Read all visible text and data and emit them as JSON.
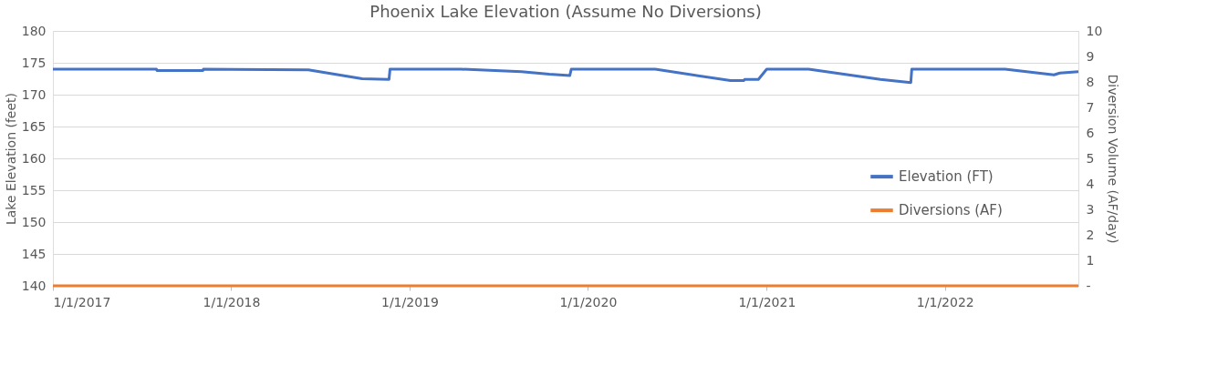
{
  "chart_data": {
    "type": "line",
    "title": "Phoenix Lake Elevation (Assume No Diversions)",
    "ylabel": "Lake Elevation (feet)",
    "y2label": "Diversion Volume (AF/day)",
    "xlim": [
      "2017-01-01",
      "2022-10-01"
    ],
    "xticks": [
      {
        "value": "2017-01-01",
        "label": "1/1/2017"
      },
      {
        "value": "2018-01-01",
        "label": "1/1/2018"
      },
      {
        "value": "2019-01-01",
        "label": "1/1/2019"
      },
      {
        "value": "2020-01-01",
        "label": "1/1/2020"
      },
      {
        "value": "2021-01-01",
        "label": "1/1/2021"
      },
      {
        "value": "2022-01-01",
        "label": "1/1/2022"
      }
    ],
    "ylim": [
      140,
      180
    ],
    "yticks": [
      140,
      145,
      150,
      155,
      160,
      165,
      170,
      175,
      180
    ],
    "y2lim": [
      0,
      10
    ],
    "y2ticks": [
      {
        "value": 0,
        "label": "-"
      },
      1,
      2,
      3,
      4,
      5,
      6,
      7,
      8,
      9,
      10
    ],
    "grid": "y",
    "legend": "right",
    "marker": "none",
    "line_style": "solid",
    "series": [
      {
        "name": "Elevation (FT)",
        "color": "#4472c4",
        "x": [
          "2017-01-01",
          "2017-08-01",
          "2017-08-02",
          "2017-11-04",
          "2017-11-05",
          "2018-06-08",
          "2018-09-26",
          "2018-11-20",
          "2018-11-22",
          "2019-04-16",
          "2019-08-18",
          "2019-10-14",
          "2019-11-25",
          "2019-11-28",
          "2020-05-18",
          "2020-10-19",
          "2020-11-15",
          "2020-11-17",
          "2020-12-15",
          "2021-01-01",
          "2021-03-28",
          "2021-08-22",
          "2021-10-23",
          "2021-10-25",
          "2022-05-04",
          "2022-08-12",
          "2022-08-24",
          "2022-10-01"
        ],
        "values": [
          174.0,
          174.0,
          173.8,
          173.8,
          174.0,
          173.9,
          172.5,
          172.4,
          174.0,
          174.0,
          173.6,
          173.2,
          173.0,
          174.0,
          174.0,
          172.2,
          172.2,
          172.4,
          172.4,
          174.0,
          174.0,
          172.4,
          171.9,
          174.0,
          174.0,
          173.1,
          173.4,
          173.6
        ]
      },
      {
        "name": "Diversions (AF)",
        "color": "#ed7d31",
        "axis": "y2",
        "x": [
          "2017-01-01",
          "2022-10-01"
        ],
        "values": [
          0,
          0
        ]
      }
    ]
  }
}
